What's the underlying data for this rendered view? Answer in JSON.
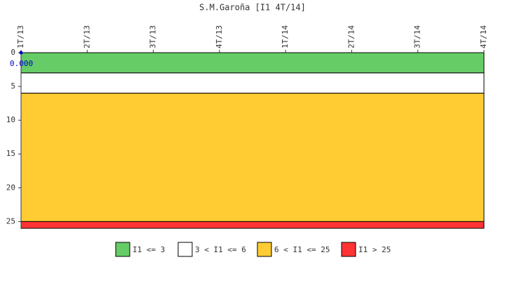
{
  "chart_data": {
    "type": "threshold-line",
    "title": "S.M.Garoña [I1 4T/14]",
    "categories": [
      "1T/13",
      "2T/13",
      "3T/13",
      "4T/13",
      "1T/14",
      "2T/14",
      "3T/14",
      "4T/14"
    ],
    "series": [
      {
        "color": "#0000cc",
        "values": [
          0,
          null,
          null,
          null,
          null,
          null,
          null,
          null
        ],
        "value_labels": [
          "0.000",
          null,
          null,
          null,
          null,
          null,
          null,
          null
        ]
      }
    ],
    "bands": [
      {
        "name": "I1 <= 3",
        "from": 0,
        "to": 3,
        "color": "#66cc66"
      },
      {
        "name": "3 < I1 <= 6",
        "from": 3,
        "to": 6,
        "color": "#ffffff"
      },
      {
        "name": "6 < I1 <= 25",
        "from": 6,
        "to": 25,
        "color": "#ffcc33"
      },
      {
        "name": "I1 > 25",
        "from": 25,
        "to": 26,
        "color": "#ff3333"
      }
    ],
    "ylim": [
      0,
      26
    ],
    "yticks": [
      0,
      5,
      10,
      15,
      20,
      25
    ],
    "y_inverted": true
  }
}
